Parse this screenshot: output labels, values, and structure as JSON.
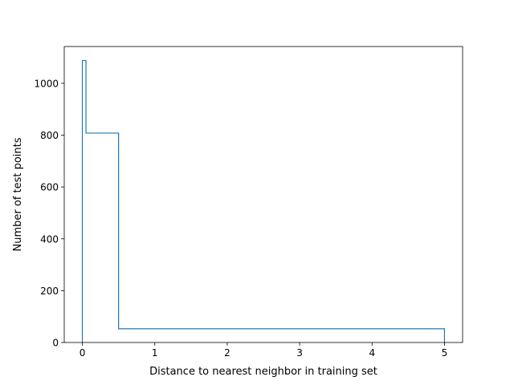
{
  "chart_data": {
    "type": "histogram-step",
    "title": "",
    "xlabel": "Distance to nearest neighbor in training set",
    "ylabel": "Number of test points",
    "xlim": [
      -0.25,
      5.25
    ],
    "ylim": [
      0,
      1142
    ],
    "x_ticks": [
      0,
      1,
      2,
      3,
      4,
      5
    ],
    "x_tick_labels": [
      "0",
      "1",
      "2",
      "3",
      "4",
      "5"
    ],
    "y_ticks": [
      0,
      200,
      400,
      600,
      800,
      1000
    ],
    "y_tick_labels": [
      "0",
      "200",
      "400",
      "600",
      "800",
      "1000"
    ],
    "bin_edges": [
      0,
      0.05,
      0.5,
      5
    ],
    "counts": [
      1088,
      808,
      53
    ],
    "grid": false,
    "legend": "none",
    "line_color": "#1f77b4"
  }
}
